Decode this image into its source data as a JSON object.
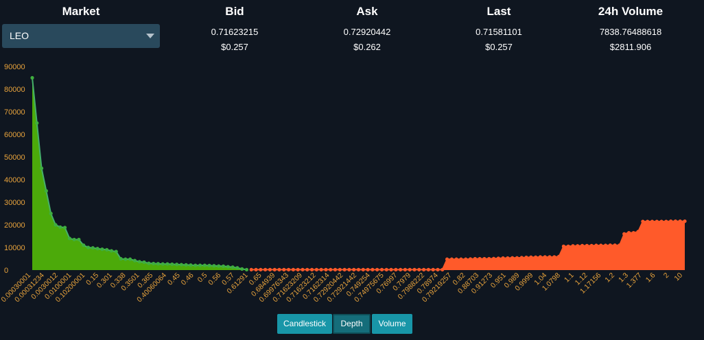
{
  "header": {
    "market_label": "Market",
    "bid_label": "Bid",
    "ask_label": "Ask",
    "last_label": "Last",
    "volume_label": "24h Volume"
  },
  "market_select": {
    "value": "LEO"
  },
  "ticker": {
    "bid": "0.71623215",
    "bid_usd": "$0.257",
    "ask": "0.72920442",
    "ask_usd": "$0.262",
    "last": "0.71581101",
    "last_usd": "$0.257",
    "volume": "7838.76488618",
    "volume_usd": "$2811.906"
  },
  "tabs": [
    "Candlestick",
    "Depth",
    "Volume"
  ],
  "active_tab": "Depth",
  "colors": {
    "bid_fill": "#4caa0a",
    "bid_line": "#45b06a",
    "bid_dot": "#3fae3f",
    "ask_fill": "#ff5a2a",
    "ask_line": "#ff5a2a",
    "axis_text": "#e8a33c",
    "background": "#0f1620"
  },
  "chart_data": {
    "type": "area",
    "ylim": [
      0,
      90000
    ],
    "y_ticks": [
      0,
      10000,
      20000,
      30000,
      40000,
      50000,
      60000,
      70000,
      80000,
      90000
    ],
    "grid": false,
    "x_tick_labels": [
      "0.00030001",
      "0.00031234",
      "0.0030012",
      "0.0100001",
      "0.10200001",
      "0.15",
      "0.301",
      "0.338",
      "0.3501",
      "0.365",
      "0.40060064",
      "0.45",
      "0.46",
      "0.5",
      "0.56",
      "0.57",
      "0.61291",
      "0.65",
      "0.684939",
      "0.69976343",
      "0.71623209",
      "0.71623212",
      "0.7162314",
      "0.72920442",
      "0.72921442",
      "0.749254",
      "0.74975675",
      "0.76997",
      "0.7979",
      "0.7988222",
      "0.78974",
      "0.79219257",
      "0.82",
      "0.88703",
      "0.91273",
      "0.951",
      "0.989",
      "0.9999",
      "1.04",
      "1.0798",
      "1.1",
      "1.12",
      "1.17156",
      "1.2",
      "1.3",
      "1.377",
      "1.6",
      "2",
      "10"
    ],
    "series": [
      {
        "side": "bid",
        "values": [
          85000,
          65000,
          45000,
          35000,
          25000,
          20000,
          19000,
          18800,
          14000,
          13500,
          13500,
          11000,
          10000,
          9800,
          9500,
          9200,
          9000,
          8500,
          8200,
          5000,
          4800,
          4800,
          4200,
          3700,
          3500,
          3000,
          2900,
          2800,
          2700,
          2700,
          2600,
          2500,
          2400,
          2300,
          2200,
          2100,
          2100,
          2100,
          2000,
          1900,
          1800,
          1700,
          1500,
          1300,
          1000,
          500,
          200
        ]
      },
      {
        "side": "ask",
        "values": [
          200,
          200,
          200,
          200,
          200,
          200,
          200,
          200,
          200,
          200,
          200,
          200,
          200,
          200,
          200,
          200,
          200,
          200,
          200,
          200,
          200,
          200,
          200,
          200,
          200,
          200,
          200,
          200,
          200,
          200,
          200,
          200,
          200,
          200,
          200,
          200,
          200,
          200,
          200,
          200,
          200,
          200,
          4800,
          4800,
          4800,
          4800,
          4800,
          4900,
          5000,
          5000,
          5000,
          5000,
          5100,
          5200,
          5300,
          5300,
          5400,
          5400,
          5500,
          5600,
          5700,
          5700,
          5800,
          5800,
          5800,
          5800,
          6000,
          10500,
          10500,
          10700,
          10700,
          10800,
          10800,
          10800,
          10900,
          10900,
          10900,
          11000,
          11000,
          11000,
          16000,
          16500,
          16500,
          17000,
          21500,
          21500,
          21500,
          21500,
          21500,
          21500,
          21600,
          21600,
          21600,
          21600
        ]
      }
    ]
  }
}
